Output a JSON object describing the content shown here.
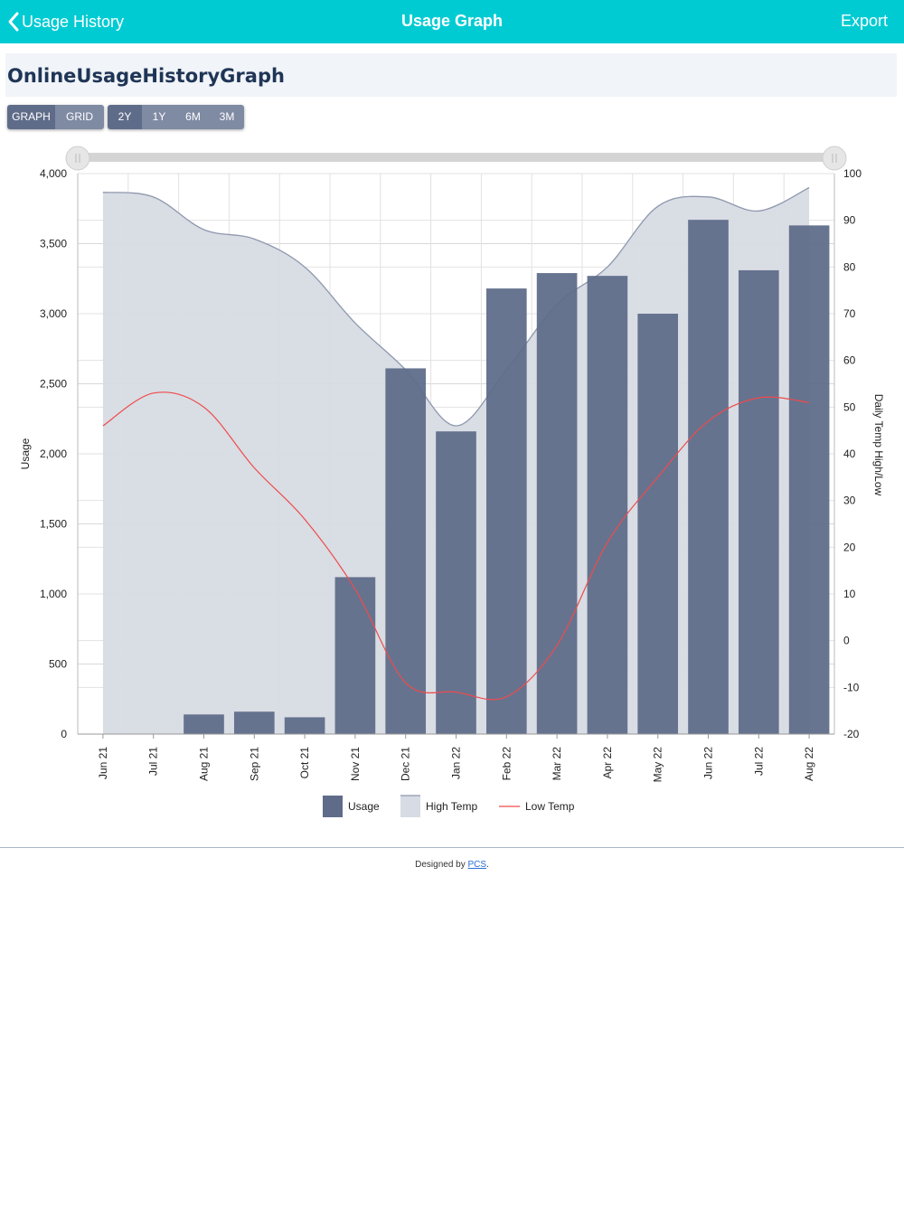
{
  "nav": {
    "back_label": "Usage History",
    "title": "Usage Graph",
    "export_label": "Export"
  },
  "page_title": "OnlineUsageHistoryGraph",
  "view_toggle": [
    "GRAPH",
    "GRID"
  ],
  "range_toggle": [
    "2Y",
    "1Y",
    "6M",
    "3M"
  ],
  "colors": {
    "nav_bg": "#00cbd3",
    "usage_bar": "#5f6c89",
    "high_temp_fill": "#d7dbe3",
    "high_temp_line": "#8e98ae",
    "low_temp_line": "#ef4b4b"
  },
  "chart_data": {
    "type": "bar",
    "categories": [
      "Jun 21",
      "Jul 21",
      "Aug 21",
      "Sep 21",
      "Oct 21",
      "Nov 21",
      "Dec 21",
      "Jan 22",
      "Feb 22",
      "Mar 22",
      "Apr 22",
      "May 22",
      "Jun 22",
      "Jul 22",
      "Aug 22"
    ],
    "series": [
      {
        "name": "Usage",
        "type": "bar",
        "axis": "left",
        "values": [
          0,
          0,
          140,
          160,
          120,
          1120,
          2610,
          2160,
          3180,
          3290,
          3270,
          3000,
          3670,
          3310,
          3630
        ]
      },
      {
        "name": "High Temp",
        "type": "area",
        "axis": "right",
        "values": [
          96,
          95,
          88,
          86,
          80,
          68,
          58,
          46,
          58,
          72,
          80,
          93,
          95,
          92,
          97
        ]
      },
      {
        "name": "Low Temp",
        "type": "line",
        "axis": "right",
        "values": [
          46,
          53,
          50,
          37,
          26,
          11,
          -9,
          -11,
          -12,
          -1,
          21,
          35,
          47,
          52,
          51
        ]
      }
    ],
    "ylabel": "Usage",
    "y2label": "Daily Temp High/Low",
    "ylim": [
      0,
      4000
    ],
    "y2lim": [
      -20,
      100
    ],
    "yticks": [
      "0",
      "500",
      "1,000",
      "1,500",
      "2,000",
      "2,500",
      "3,000",
      "3,500",
      "4,000"
    ],
    "y2ticks": [
      "-20",
      "-10",
      "0",
      "10",
      "20",
      "30",
      "40",
      "50",
      "60",
      "70",
      "80",
      "90",
      "100"
    ],
    "legend": [
      "Usage",
      "High Temp",
      "Low Temp"
    ],
    "legend_position": "bottom",
    "grid": true
  },
  "footer": {
    "prefix": "Designed by ",
    "link": "PCS",
    "suffix": "."
  }
}
